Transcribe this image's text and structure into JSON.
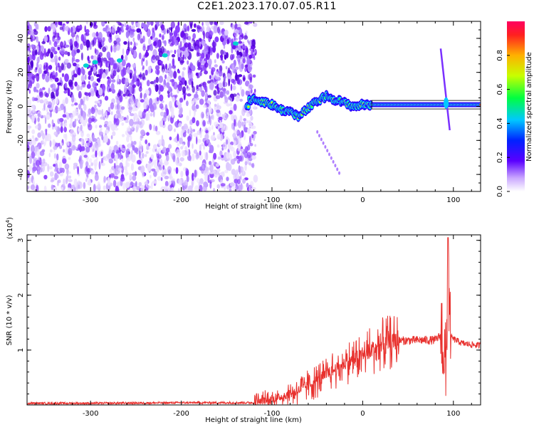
{
  "title": "C2E1.2023.170.07.05.R11",
  "colors": {
    "snr_line": "#e8312e",
    "spectrum_low": "#e6d6ff",
    "spectrum_mid": "#7a1cf0",
    "frame": "#000000"
  },
  "chart_data": [
    {
      "type": "heatmap",
      "title": "C2E1.2023.170.07.05.R11",
      "xlabel": "Height of straight line (km)",
      "ylabel": "Frequency (Hz)",
      "xlim": [
        -370,
        130
      ],
      "ylim": [
        -50,
        50
      ],
      "xticks": [
        -300,
        -200,
        -100,
        0,
        100
      ],
      "yticks": [
        -40,
        -20,
        0,
        20,
        40
      ],
      "colorbar": {
        "label": "Normalized spectral amplitude",
        "range": [
          0,
          1
        ],
        "ticks": [
          "0.0",
          "0.2",
          "0.4",
          "0.6",
          "0.8"
        ],
        "colormap": "rainbow"
      },
      "signal_track": [
        {
          "x": -125,
          "y": 4
        },
        {
          "x": -110,
          "y": 3
        },
        {
          "x": -100,
          "y": 1
        },
        {
          "x": -90,
          "y": -2
        },
        {
          "x": -80,
          "y": -3
        },
        {
          "x": -70,
          "y": -6
        },
        {
          "x": -60,
          "y": -1
        },
        {
          "x": -50,
          "y": 3
        },
        {
          "x": -40,
          "y": 6
        },
        {
          "x": -30,
          "y": 4
        },
        {
          "x": -20,
          "y": 2
        },
        {
          "x": -10,
          "y": 0
        },
        {
          "x": 0,
          "y": 1
        },
        {
          "x": 20,
          "y": 1
        },
        {
          "x": 60,
          "y": 1
        },
        {
          "x": 90,
          "y": 1
        },
        {
          "x": 130,
          "y": 1
        }
      ],
      "spike_x": 92
    },
    {
      "type": "line",
      "xlabel": "Height of straight line (km)",
      "ylabel": "SNR (10 * v/v)",
      "yscale_note": "(x10",
      "yscale_exp": "4",
      "yscale_close": ")",
      "xlim": [
        -370,
        130
      ],
      "ylim": [
        0,
        3.1
      ],
      "xticks": [
        -300,
        -200,
        -100,
        0,
        100
      ],
      "yticks": [
        1,
        2,
        3
      ],
      "series": [
        {
          "x": [
            -370,
            -300,
            -200,
            -120,
            -100,
            -80,
            -60,
            -40,
            -20,
            0,
            20,
            40,
            60,
            80,
            88,
            92,
            94,
            96,
            100,
            110,
            130
          ],
          "y": [
            0.03,
            0.03,
            0.04,
            0.04,
            0.1,
            0.2,
            0.35,
            0.55,
            0.75,
            0.9,
            1.1,
            1.17,
            1.18,
            1.18,
            1.3,
            0.5,
            2.95,
            1.25,
            1.2,
            1.12,
            1.08
          ]
        }
      ]
    }
  ]
}
